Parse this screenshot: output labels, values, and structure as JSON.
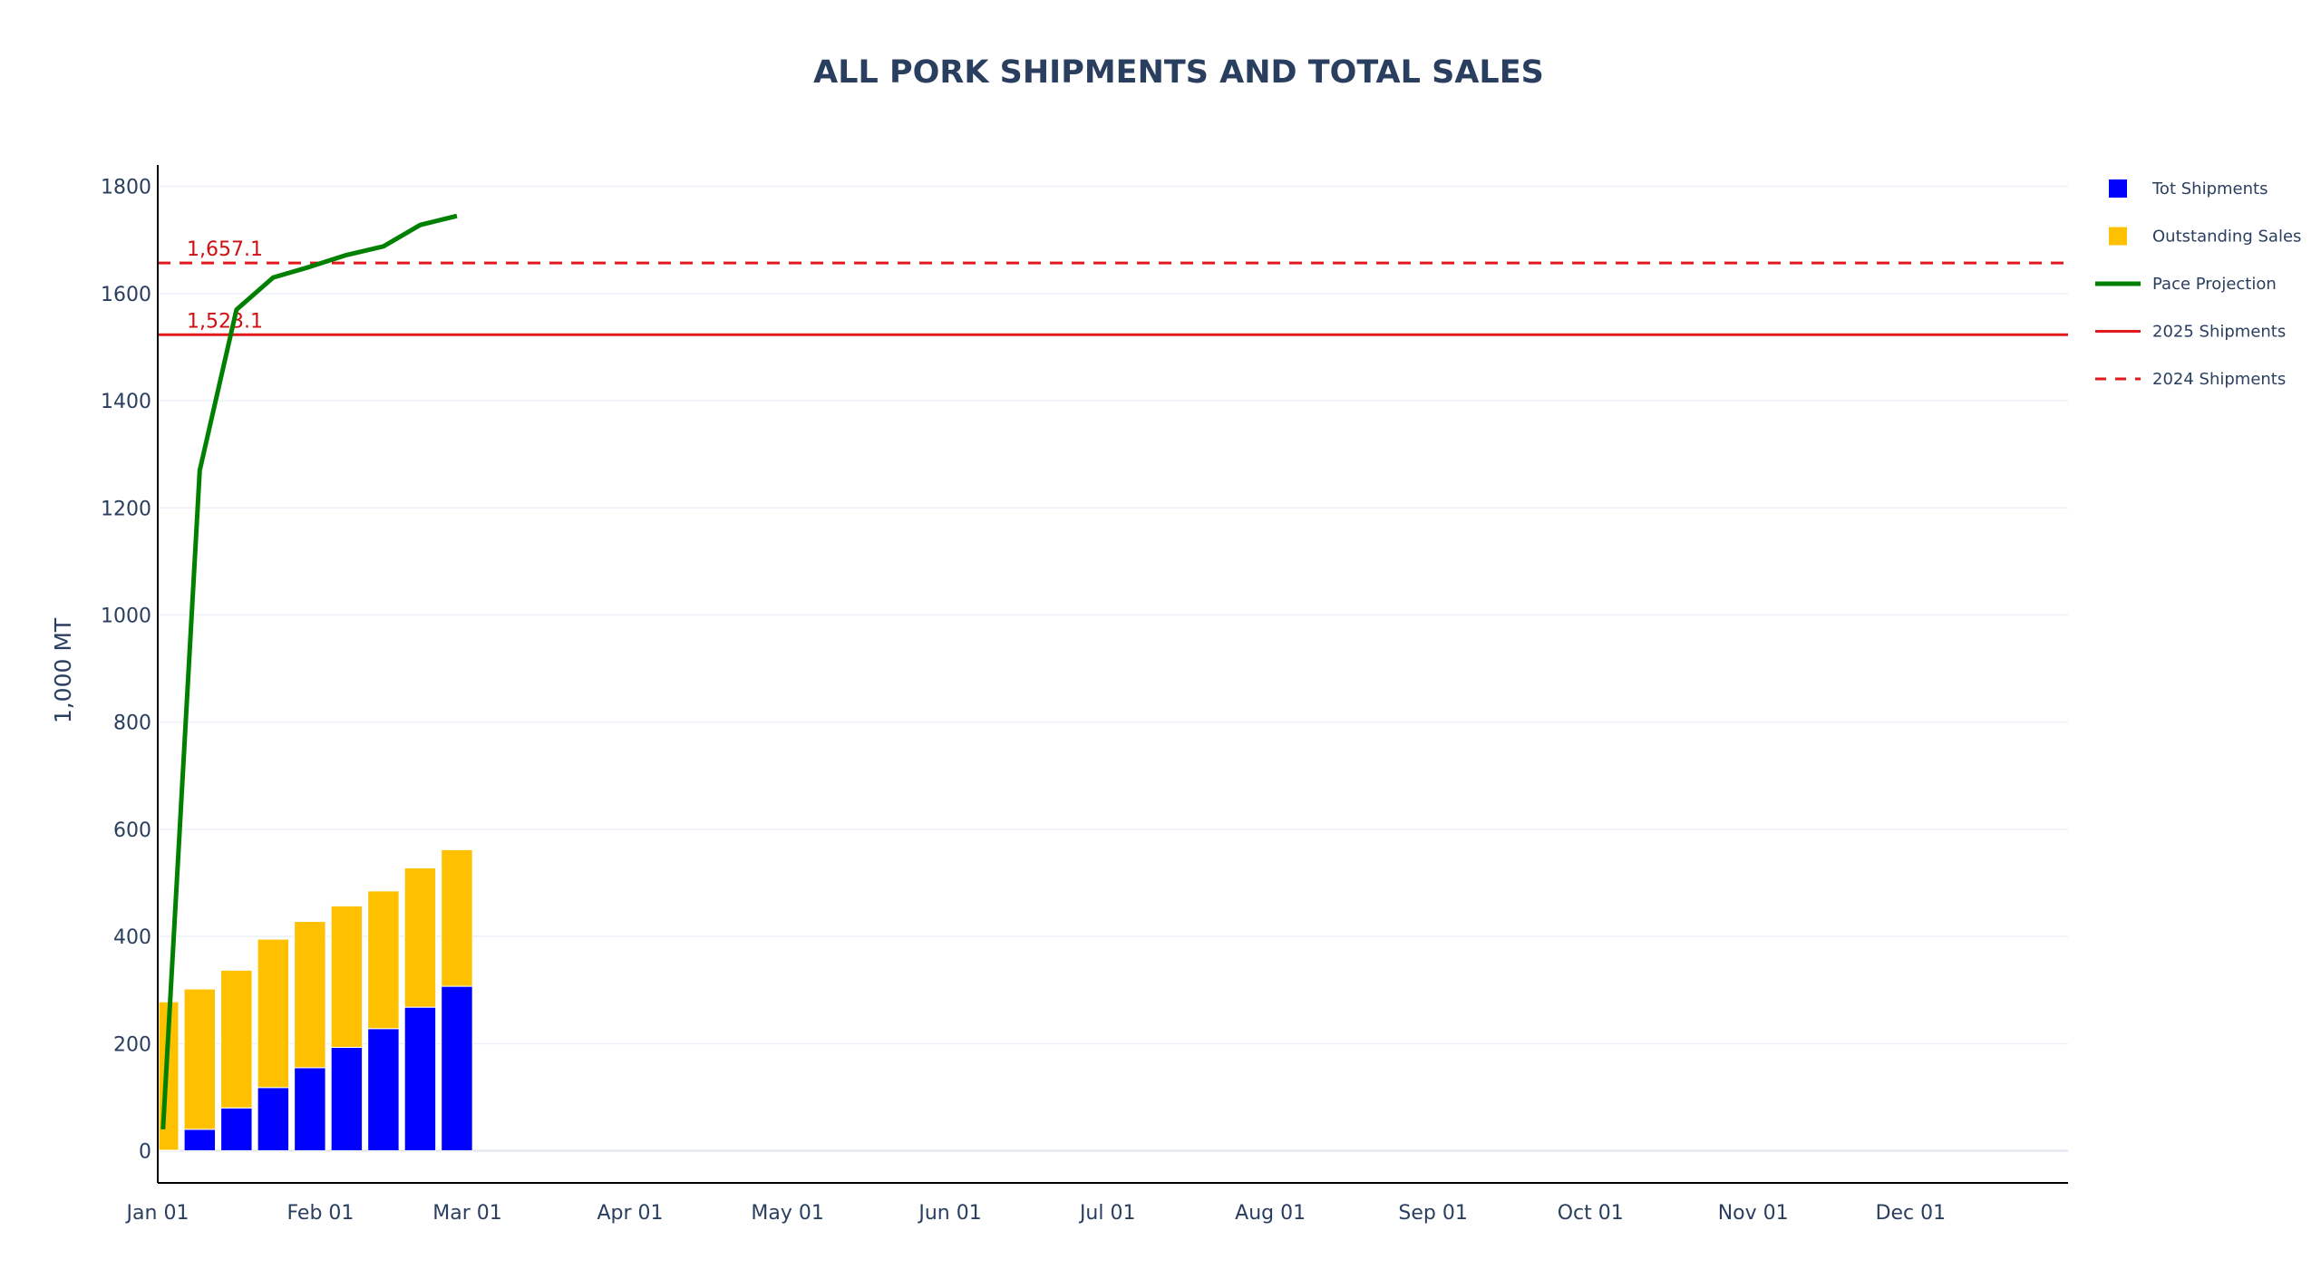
{
  "chart_data": {
    "type": "bar",
    "title": "ALL PORK SHIPMENTS AND TOTAL SALES",
    "xlabel": "",
    "ylabel": "1,000 MT",
    "ylim": [
      -60,
      1840
    ],
    "yticks": [
      0,
      200,
      400,
      600,
      800,
      1000,
      1200,
      1400,
      1600,
      1800
    ],
    "xlim": [
      "2025-01-01",
      "2025-12-31"
    ],
    "xtick_labels": [
      {
        "date": "2025-01-01",
        "label": "Jan 01"
      },
      {
        "date": "2025-02-01",
        "label": "Feb 01"
      },
      {
        "date": "2025-03-01",
        "label": "Mar 01"
      },
      {
        "date": "2025-04-01",
        "label": "Apr 01"
      },
      {
        "date": "2025-05-01",
        "label": "May 01"
      },
      {
        "date": "2025-06-01",
        "label": "Jun 01"
      },
      {
        "date": "2025-07-01",
        "label": "Jul 01"
      },
      {
        "date": "2025-08-01",
        "label": "Aug 01"
      },
      {
        "date": "2025-09-01",
        "label": "Sep 01"
      },
      {
        "date": "2025-10-01",
        "label": "Oct 01"
      },
      {
        "date": "2025-11-01",
        "label": "Nov 01"
      },
      {
        "date": "2025-12-01",
        "label": "Dec 01"
      }
    ],
    "grid": true,
    "legend_position": "right",
    "categories": [
      "2025-01-02",
      "2025-01-09",
      "2025-01-16",
      "2025-01-23",
      "2025-01-30",
      "2025-02-06",
      "2025-02-13",
      "2025-02-20",
      "2025-02-27"
    ],
    "series": [
      {
        "name": "Tot Shipments",
        "type": "bar",
        "color": "#0000ff",
        "values": [
          1,
          40,
          80,
          118,
          155,
          193,
          228,
          268,
          307
        ]
      },
      {
        "name": "Outstanding Sales",
        "type": "bar",
        "color": "#ffc000",
        "values": [
          277,
          262,
          257,
          277,
          273,
          264,
          257,
          260,
          255
        ]
      },
      {
        "name": "Pace Projection",
        "type": "line",
        "color": "#008000",
        "x": [
          "2025-01-02",
          "2025-01-09",
          "2025-01-16",
          "2025-01-23",
          "2025-01-30",
          "2025-02-06",
          "2025-02-13",
          "2025-02-20",
          "2025-02-27"
        ],
        "values": [
          40,
          1270,
          1570,
          1630,
          1650,
          1672,
          1688,
          1728,
          1745
        ]
      },
      {
        "name": "2025 Shipments",
        "type": "hline",
        "color": "#e31a1c",
        "dash": "solid",
        "value": 1523.1,
        "label": "1,523.1"
      },
      {
        "name": "2024 Shipments",
        "type": "hline",
        "color": "#e31a1c",
        "dash": "dash",
        "value": 1657.1,
        "label": "1,657.1"
      }
    ]
  }
}
